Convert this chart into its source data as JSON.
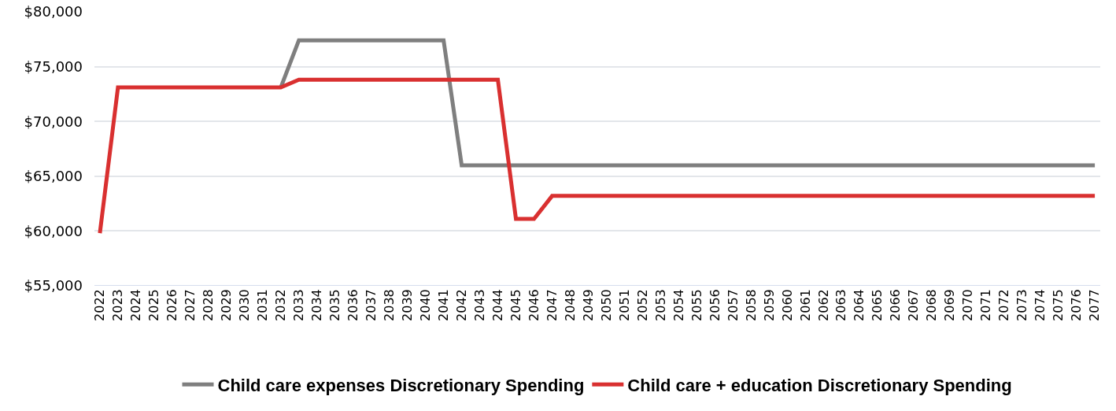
{
  "chart_data": {
    "type": "line",
    "categories": [
      "2022",
      "2023",
      "2024",
      "2025",
      "2026",
      "2027",
      "2028",
      "2029",
      "2030",
      "2031",
      "2032",
      "2033",
      "2034",
      "2035",
      "2036",
      "2037",
      "2038",
      "2039",
      "2040",
      "2041",
      "2042",
      "2043",
      "2044",
      "2045",
      "2046",
      "2047",
      "2048",
      "2049",
      "2050",
      "2051",
      "2052",
      "2053",
      "2054",
      "2055",
      "2056",
      "2057",
      "2058",
      "2059",
      "2060",
      "2061",
      "2062",
      "2063",
      "2064",
      "2065",
      "2066",
      "2067",
      "2068",
      "2069",
      "2070",
      "2071",
      "2072",
      "2073",
      "2074",
      "2075",
      "2076",
      "2077"
    ],
    "series": [
      {
        "name": "Child care expenses Discretionary Spending",
        "color": "#7f7f7f",
        "values": [
          null,
          null,
          null,
          null,
          null,
          null,
          null,
          null,
          null,
          null,
          73100,
          77400,
          77400,
          77400,
          77400,
          77400,
          77400,
          77400,
          77400,
          77400,
          66000,
          66000,
          66000,
          66000,
          66000,
          66000,
          66000,
          66000,
          66000,
          66000,
          66000,
          66000,
          66000,
          66000,
          66000,
          66000,
          66000,
          66000,
          66000,
          66000,
          66000,
          66000,
          66000,
          66000,
          66000,
          66000,
          66000,
          66000,
          66000,
          66000,
          66000,
          66000,
          66000,
          66000,
          66000,
          66000
        ]
      },
      {
        "name": "Child care + education Discretionary Spending",
        "color": "#d93030",
        "values": [
          59800,
          73100,
          73100,
          73100,
          73100,
          73100,
          73100,
          73100,
          73100,
          73100,
          73100,
          73800,
          73800,
          73800,
          73800,
          73800,
          73800,
          73800,
          73800,
          73800,
          73800,
          73800,
          73800,
          61100,
          61100,
          63200,
          63200,
          63200,
          63200,
          63200,
          63200,
          63200,
          63200,
          63200,
          63200,
          63200,
          63200,
          63200,
          63200,
          63200,
          63200,
          63200,
          63200,
          63200,
          63200,
          63200,
          63200,
          63200,
          63200,
          63200,
          63200,
          63200,
          63200,
          63200,
          63200,
          63200
        ]
      }
    ],
    "ylim": [
      55000,
      80000
    ],
    "yticks": [
      {
        "value": 55000,
        "label": "$55,000"
      },
      {
        "value": 60000,
        "label": "$60,000"
      },
      {
        "value": 65000,
        "label": "$65,000"
      },
      {
        "value": 70000,
        "label": "$70,000"
      },
      {
        "value": 75000,
        "label": "$75,000"
      },
      {
        "value": 80000,
        "label": "$80,000"
      }
    ],
    "grid": "y",
    "legend": "bottom",
    "marker": "none",
    "line_style": "solid"
  }
}
